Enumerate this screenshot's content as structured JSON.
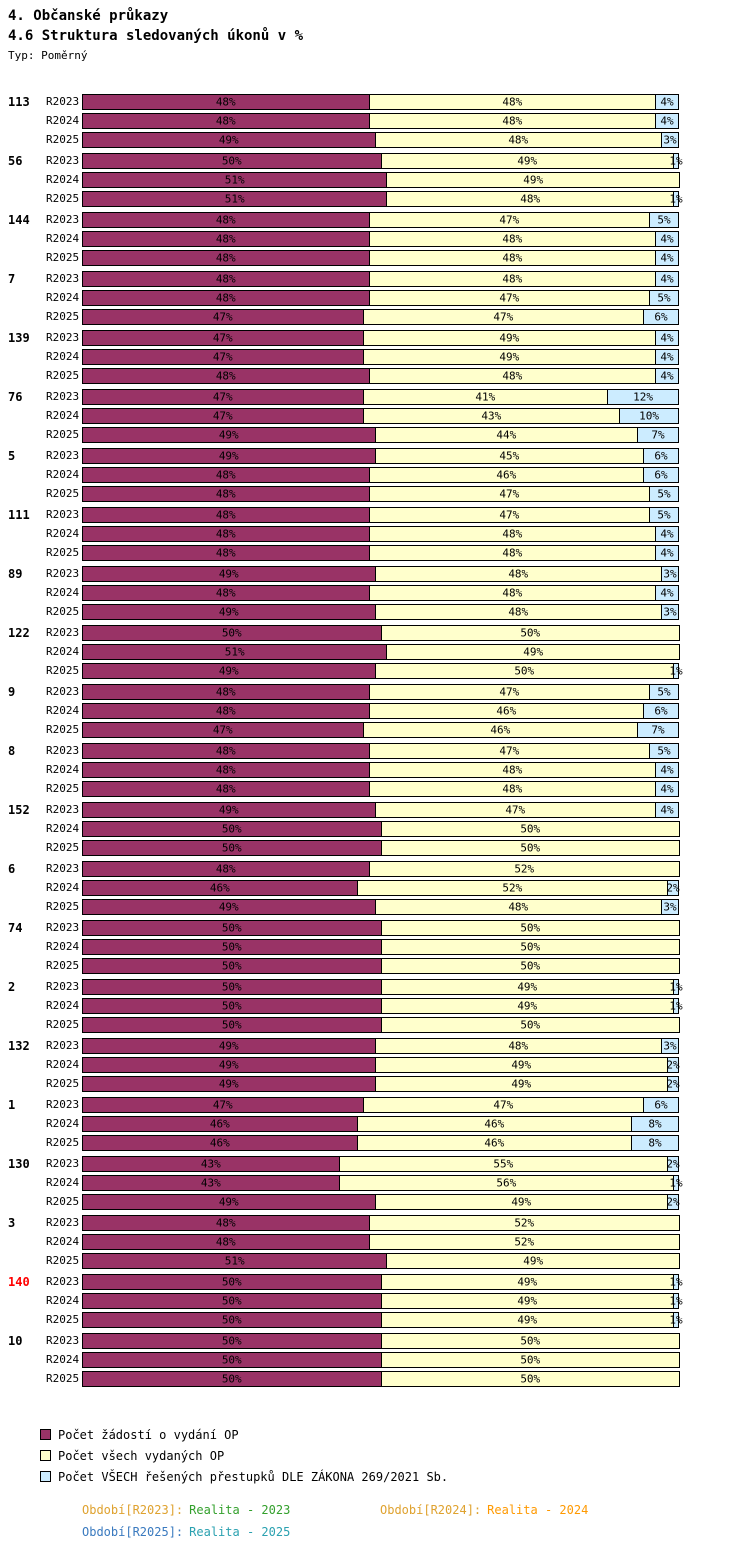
{
  "header": {
    "title": "4. Občanské průkazy",
    "subtitle": "4.6 Struktura sledovaných úkonů v %",
    "type_label": "Typ: Poměrný"
  },
  "chart_data": {
    "type": "bar",
    "orientation": "horizontal",
    "stacked": true,
    "unit": "%",
    "xlim": [
      0,
      100
    ],
    "row_labels": [
      "R2023",
      "R2024",
      "R2025"
    ],
    "series_names": [
      "Počet žádostí o vydání OP",
      "Počet všech vydaných OP",
      "Počet VŠECH řešených přestupků DLE ZÁKONA  269/2021 Sb."
    ],
    "series_colors": [
      "#993366",
      "#FFFFCC",
      "#CCECFF"
    ],
    "groups": [
      {
        "label": "113",
        "label_color": "#000000",
        "rows": [
          [
            48,
            48,
            4
          ],
          [
            48,
            48,
            4
          ],
          [
            49,
            48,
            3
          ]
        ]
      },
      {
        "label": "56",
        "label_color": "#000000",
        "rows": [
          [
            50,
            49,
            1
          ],
          [
            51,
            49,
            0
          ],
          [
            51,
            48,
            1
          ]
        ]
      },
      {
        "label": "144",
        "label_color": "#000000",
        "rows": [
          [
            48,
            47,
            5
          ],
          [
            48,
            48,
            4
          ],
          [
            48,
            48,
            4
          ]
        ]
      },
      {
        "label": "7",
        "label_color": "#000000",
        "rows": [
          [
            48,
            48,
            4
          ],
          [
            48,
            47,
            5
          ],
          [
            47,
            47,
            6
          ]
        ]
      },
      {
        "label": "139",
        "label_color": "#000000",
        "rows": [
          [
            47,
            49,
            4
          ],
          [
            47,
            49,
            4
          ],
          [
            48,
            48,
            4
          ]
        ]
      },
      {
        "label": "76",
        "label_color": "#000000",
        "rows": [
          [
            47,
            41,
            12
          ],
          [
            47,
            43,
            10
          ],
          [
            49,
            44,
            7
          ]
        ]
      },
      {
        "label": "5",
        "label_color": "#000000",
        "rows": [
          [
            49,
            45,
            6
          ],
          [
            48,
            46,
            6
          ],
          [
            48,
            47,
            5
          ]
        ]
      },
      {
        "label": "111",
        "label_color": "#000000",
        "rows": [
          [
            48,
            47,
            5
          ],
          [
            48,
            48,
            4
          ],
          [
            48,
            48,
            4
          ]
        ]
      },
      {
        "label": "89",
        "label_color": "#000000",
        "rows": [
          [
            49,
            48,
            3
          ],
          [
            48,
            48,
            4
          ],
          [
            49,
            48,
            3
          ]
        ]
      },
      {
        "label": "122",
        "label_color": "#000000",
        "rows": [
          [
            50,
            50,
            0
          ],
          [
            51,
            49,
            0
          ],
          [
            49,
            50,
            1
          ]
        ]
      },
      {
        "label": "9",
        "label_color": "#000000",
        "rows": [
          [
            48,
            47,
            5
          ],
          [
            48,
            46,
            6
          ],
          [
            47,
            46,
            7
          ]
        ]
      },
      {
        "label": "8",
        "label_color": "#000000",
        "rows": [
          [
            48,
            47,
            5
          ],
          [
            48,
            48,
            4
          ],
          [
            48,
            48,
            4
          ]
        ]
      },
      {
        "label": "152",
        "label_color": "#000000",
        "rows": [
          [
            49,
            47,
            4
          ],
          [
            50,
            50,
            0
          ],
          [
            50,
            50,
            0
          ]
        ]
      },
      {
        "label": "6",
        "label_color": "#000000",
        "rows": [
          [
            48,
            52,
            0
          ],
          [
            46,
            52,
            2
          ],
          [
            49,
            48,
            3
          ]
        ]
      },
      {
        "label": "74",
        "label_color": "#000000",
        "rows": [
          [
            50,
            50,
            0
          ],
          [
            50,
            50,
            0
          ],
          [
            50,
            50,
            0
          ]
        ]
      },
      {
        "label": "2",
        "label_color": "#000000",
        "rows": [
          [
            50,
            49,
            1
          ],
          [
            50,
            49,
            1
          ],
          [
            50,
            50,
            0
          ]
        ]
      },
      {
        "label": "132",
        "label_color": "#000000",
        "rows": [
          [
            49,
            48,
            3
          ],
          [
            49,
            49,
            2
          ],
          [
            49,
            49,
            2
          ]
        ]
      },
      {
        "label": "1",
        "label_color": "#000000",
        "rows": [
          [
            47,
            47,
            6
          ],
          [
            46,
            46,
            8
          ],
          [
            46,
            46,
            8
          ]
        ]
      },
      {
        "label": "130",
        "label_color": "#000000",
        "rows": [
          [
            43,
            55,
            2
          ],
          [
            43,
            56,
            1
          ],
          [
            49,
            49,
            2
          ]
        ]
      },
      {
        "label": "3",
        "label_color": "#000000",
        "rows": [
          [
            48,
            52,
            0
          ],
          [
            48,
            52,
            0
          ],
          [
            51,
            49,
            0
          ]
        ]
      },
      {
        "label": "140",
        "label_color": "#FF0000",
        "rows": [
          [
            50,
            49,
            1
          ],
          [
            50,
            49,
            1
          ],
          [
            50,
            49,
            1
          ]
        ]
      },
      {
        "label": "10",
        "label_color": "#000000",
        "rows": [
          [
            50,
            50,
            0
          ],
          [
            50,
            50,
            0
          ],
          [
            50,
            50,
            0
          ]
        ]
      }
    ]
  },
  "legend": {
    "items": [
      {
        "label": "Počet žádostí o vydání OP",
        "color": "#993366"
      },
      {
        "label": "Počet všech vydaných OP",
        "color": "#FFFFCC"
      },
      {
        "label": "Počet VŠECH řešených přestupků DLE ZÁKONA  269/2021 Sb.",
        "color": "#CCECFF"
      }
    ]
  },
  "footer": {
    "lines": [
      [
        {
          "label": "Období[R2023]:",
          "value": "Realita - 2023",
          "label_color": "#DFA22F",
          "value_color": "#33A02C"
        },
        {
          "label": "Období[R2024]:",
          "value": "Realita - 2024",
          "label_color": "#DFA22F",
          "value_color": "#FF9900"
        }
      ],
      [
        {
          "label": "Období[R2025]:",
          "value": "Realita - 2025",
          "label_color": "#3A7ABF",
          "value_color": "#2AA1B0"
        }
      ]
    ]
  }
}
